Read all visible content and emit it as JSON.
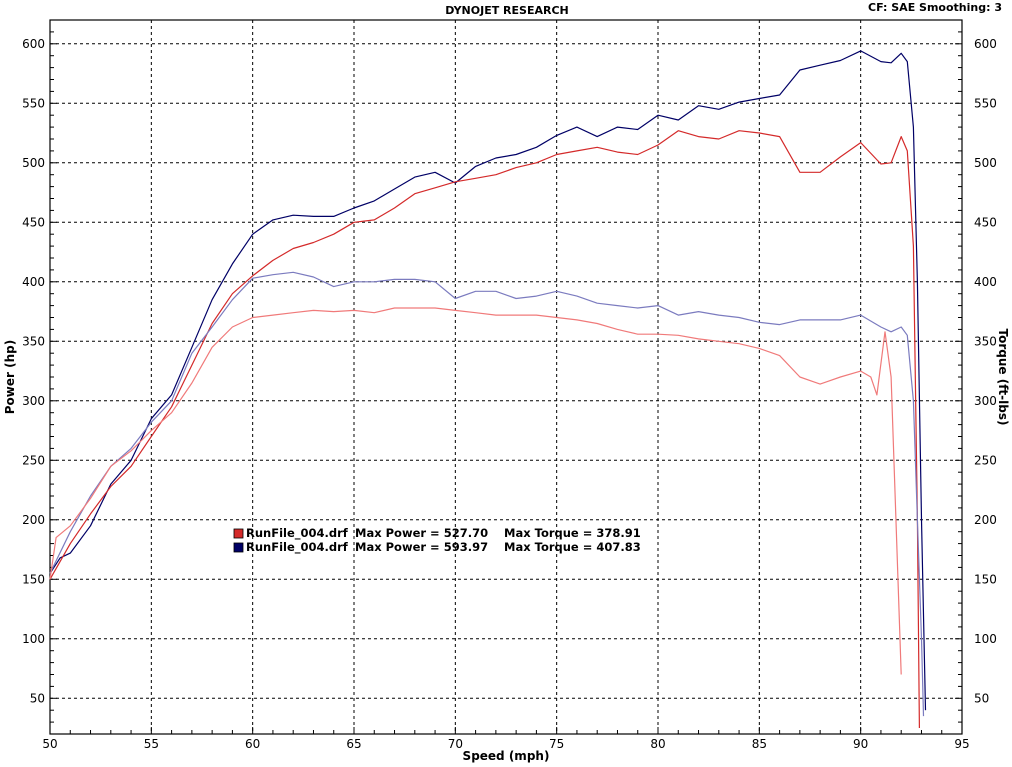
{
  "header": {
    "title": "DYNOJET RESEARCH",
    "settings": "CF: SAE  Smoothing: 3"
  },
  "colors": {
    "run1_power": "#d42a2a",
    "run1_torque": "#f07a7a",
    "run2_power": "#000066",
    "run2_torque": "#7b7bbf",
    "grid": "#000000"
  },
  "legend": {
    "entries": [
      {
        "file": "RunFile_004.drf",
        "max_power": "Max Power = 527.70",
        "max_torque": "Max Torque = 378.91"
      },
      {
        "file": "RunFile_004.drf",
        "max_power": "Max Power = 593.97",
        "max_torque": "Max Torque = 407.83"
      }
    ]
  },
  "chart_data": {
    "type": "line",
    "xlabel": "Speed (mph)",
    "ylabel": "Power (hp)",
    "y2label": "Torque (ft-lbs)",
    "xlim": [
      50,
      95
    ],
    "ylim": [
      20,
      620
    ],
    "grid": true,
    "x_ticks": [
      50,
      55,
      60,
      65,
      70,
      75,
      80,
      85,
      90,
      95
    ],
    "y_ticks": [
      50,
      100,
      150,
      200,
      250,
      300,
      350,
      400,
      450,
      500,
      550,
      600
    ],
    "series": [
      {
        "axis": "power",
        "color_key": "run2_power",
        "points": [
          [
            50,
            155
          ],
          [
            50.5,
            168
          ],
          [
            51,
            172
          ],
          [
            52,
            195
          ],
          [
            53,
            230
          ],
          [
            54,
            250
          ],
          [
            55,
            285
          ],
          [
            56,
            305
          ],
          [
            57,
            345
          ],
          [
            58,
            385
          ],
          [
            59,
            415
          ],
          [
            60,
            440
          ],
          [
            61,
            452
          ],
          [
            62,
            456
          ],
          [
            63,
            455
          ],
          [
            64,
            455
          ],
          [
            65,
            462
          ],
          [
            66,
            468
          ],
          [
            67,
            478
          ],
          [
            68,
            488
          ],
          [
            69,
            492
          ],
          [
            70,
            483
          ],
          [
            71,
            497
          ],
          [
            72,
            504
          ],
          [
            73,
            507
          ],
          [
            74,
            513
          ],
          [
            75,
            523
          ],
          [
            76,
            530
          ],
          [
            77,
            522
          ],
          [
            78,
            530
          ],
          [
            79,
            528
          ],
          [
            80,
            540
          ],
          [
            81,
            536
          ],
          [
            82,
            548
          ],
          [
            83,
            545
          ],
          [
            84,
            551
          ],
          [
            85,
            554
          ],
          [
            86,
            557
          ],
          [
            87,
            578
          ],
          [
            88,
            582
          ],
          [
            89,
            586
          ],
          [
            90,
            594
          ],
          [
            91,
            585
          ],
          [
            91.5,
            584
          ],
          [
            92,
            592
          ],
          [
            92.3,
            585
          ],
          [
            92.6,
            530
          ],
          [
            92.8,
            400
          ],
          [
            93,
            200
          ],
          [
            93.2,
            40
          ]
        ]
      },
      {
        "axis": "power",
        "color_key": "run1_power",
        "points": [
          [
            50,
            150
          ],
          [
            51,
            180
          ],
          [
            52,
            205
          ],
          [
            53,
            228
          ],
          [
            54,
            245
          ],
          [
            55,
            270
          ],
          [
            56,
            295
          ],
          [
            57,
            330
          ],
          [
            58,
            365
          ],
          [
            59,
            390
          ],
          [
            60,
            405
          ],
          [
            61,
            418
          ],
          [
            62,
            428
          ],
          [
            63,
            433
          ],
          [
            64,
            440
          ],
          [
            65,
            450
          ],
          [
            66,
            452
          ],
          [
            67,
            462
          ],
          [
            68,
            474
          ],
          [
            69,
            479
          ],
          [
            70,
            484
          ],
          [
            71,
            487
          ],
          [
            72,
            490
          ],
          [
            73,
            496
          ],
          [
            74,
            500
          ],
          [
            75,
            507
          ],
          [
            76,
            510
          ],
          [
            77,
            513
          ],
          [
            78,
            509
          ],
          [
            79,
            507
          ],
          [
            80,
            515
          ],
          [
            81,
            527
          ],
          [
            82,
            522
          ],
          [
            83,
            520
          ],
          [
            84,
            527
          ],
          [
            85,
            525
          ],
          [
            86,
            522
          ],
          [
            87,
            492
          ],
          [
            88,
            492
          ],
          [
            89,
            505
          ],
          [
            90,
            517
          ],
          [
            91,
            499
          ],
          [
            91.5,
            500
          ],
          [
            92,
            522
          ],
          [
            92.3,
            510
          ],
          [
            92.6,
            430
          ],
          [
            92.8,
            200
          ],
          [
            92.9,
            25
          ]
        ]
      },
      {
        "axis": "torque",
        "color_key": "run2_torque",
        "points": [
          [
            50,
            155
          ],
          [
            51,
            190
          ],
          [
            52,
            220
          ],
          [
            53,
            245
          ],
          [
            54,
            260
          ],
          [
            55,
            282
          ],
          [
            56,
            300
          ],
          [
            57,
            340
          ],
          [
            58,
            362
          ],
          [
            59,
            385
          ],
          [
            60,
            403
          ],
          [
            61,
            406
          ],
          [
            62,
            408
          ],
          [
            63,
            404
          ],
          [
            64,
            396
          ],
          [
            65,
            400
          ],
          [
            66,
            400
          ],
          [
            67,
            402
          ],
          [
            68,
            402
          ],
          [
            69,
            400
          ],
          [
            70,
            386
          ],
          [
            71,
            392
          ],
          [
            72,
            392
          ],
          [
            73,
            386
          ],
          [
            74,
            388
          ],
          [
            75,
            392
          ],
          [
            76,
            388
          ],
          [
            77,
            382
          ],
          [
            78,
            380
          ],
          [
            79,
            378
          ],
          [
            80,
            380
          ],
          [
            81,
            372
          ],
          [
            82,
            375
          ],
          [
            83,
            372
          ],
          [
            84,
            370
          ],
          [
            85,
            366
          ],
          [
            86,
            364
          ],
          [
            87,
            368
          ],
          [
            88,
            368
          ],
          [
            89,
            368
          ],
          [
            90,
            372
          ],
          [
            91,
            362
          ],
          [
            91.5,
            358
          ],
          [
            92,
            362
          ],
          [
            92.3,
            355
          ],
          [
            92.6,
            300
          ],
          [
            92.8,
            200
          ],
          [
            93,
            100
          ],
          [
            93.1,
            35
          ]
        ]
      },
      {
        "axis": "torque",
        "color_key": "run1_torque",
        "points": [
          [
            50,
            150
          ],
          [
            50.3,
            185
          ],
          [
            51,
            195
          ],
          [
            52,
            218
          ],
          [
            53,
            245
          ],
          [
            54,
            258
          ],
          [
            55,
            275
          ],
          [
            56,
            290
          ],
          [
            57,
            315
          ],
          [
            58,
            345
          ],
          [
            59,
            362
          ],
          [
            60,
            370
          ],
          [
            61,
            372
          ],
          [
            62,
            374
          ],
          [
            63,
            376
          ],
          [
            64,
            375
          ],
          [
            65,
            376
          ],
          [
            66,
            374
          ],
          [
            67,
            378
          ],
          [
            68,
            378
          ],
          [
            69,
            378
          ],
          [
            70,
            376
          ],
          [
            71,
            374
          ],
          [
            72,
            372
          ],
          [
            73,
            372
          ],
          [
            74,
            372
          ],
          [
            75,
            370
          ],
          [
            76,
            368
          ],
          [
            77,
            365
          ],
          [
            78,
            360
          ],
          [
            79,
            356
          ],
          [
            80,
            356
          ],
          [
            81,
            355
          ],
          [
            82,
            352
          ],
          [
            83,
            350
          ],
          [
            84,
            348
          ],
          [
            85,
            344
          ],
          [
            86,
            338
          ],
          [
            87,
            320
          ],
          [
            88,
            314
          ],
          [
            89,
            320
          ],
          [
            90,
            325
          ],
          [
            90.5,
            320
          ],
          [
            90.8,
            305
          ],
          [
            91.2,
            358
          ],
          [
            91.5,
            320
          ],
          [
            92,
            70
          ]
        ]
      }
    ]
  }
}
